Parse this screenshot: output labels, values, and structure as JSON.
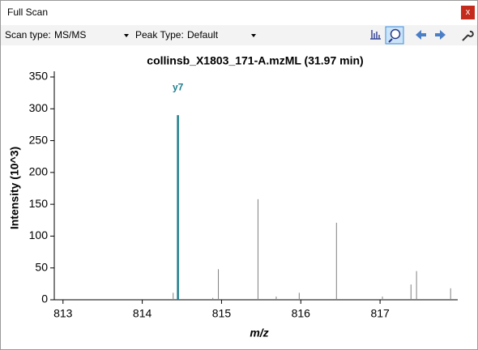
{
  "window": {
    "title": "Full Scan",
    "close": "x"
  },
  "toolbar": {
    "scan_type_label": "Scan type:",
    "scan_type": "MS/MS",
    "peak_type_label": "Peak Type:",
    "peak_type": "Default"
  },
  "chart_data": {
    "type": "stem",
    "title": "collinsb_X1803_171-A.mzML  (31.97 min)",
    "xlabel": "m/z",
    "ylabel": "Intensity (10^3)",
    "x": [
      814.39,
      814.89,
      814.96,
      815.46,
      815.69,
      815.98,
      816.45,
      817.03,
      817.39,
      817.46,
      817.89
    ],
    "values": [
      11,
      3,
      48,
      158,
      5,
      11,
      121,
      5,
      24,
      45,
      18
    ],
    "color": "#808080",
    "matched": {
      "label": "y7",
      "x": 814.45,
      "value": 290,
      "color": "#1f7f8c"
    },
    "xlim": [
      812.89,
      817.98
    ],
    "xticks": [
      813,
      814,
      815,
      816,
      817
    ],
    "ylim": [
      0,
      350
    ],
    "yticks": [
      0,
      50,
      100,
      150,
      200,
      250,
      300,
      350
    ]
  }
}
